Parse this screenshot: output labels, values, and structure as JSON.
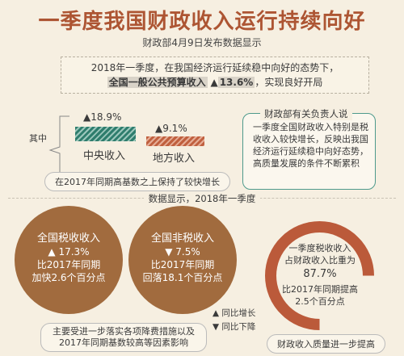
{
  "header": {
    "title": "一季度我国财政收入运行持续向好",
    "subtitle": "财政部4月9日发布数据显示"
  },
  "intro": {
    "line1": "2018年一季度，在我国经济运行延续稳中向好的态势下，",
    "line2_highlight": "全国一般公共预算收入",
    "line2_arrow": "▲",
    "line2_value": "13.6%",
    "line2_tail": "，实现良好开局"
  },
  "revenue": {
    "qizhong": "其中",
    "central": {
      "pct": "▲18.9%",
      "label": "中央收入",
      "growth": 18.9
    },
    "local": {
      "pct": "▲9.1%",
      "label": "地方收入",
      "growth": 9.1
    },
    "note": "在2017年同期高基数之上保持了较快增长"
  },
  "quote": {
    "title": "财政部有关负责人说",
    "body": "一季度全国财政收入特别是税收收入较快增长，反映出我国经济运行延续稳中向好态势，高质量发展的条件不断累积"
  },
  "section": {
    "label": "数据显示，2018年一季度"
  },
  "tax": {
    "line1": "全国税收收入",
    "line2": "▲ 17.3%",
    "line3": "比2017年同期",
    "line4": "加快2.6个百分点"
  },
  "nontax": {
    "line1": "全国非税收入",
    "line2": "▼ 7.5%",
    "line3": "比2017年同期",
    "line4": "回落18.1个百分点"
  },
  "share": {
    "line1": "一季度税收收入",
    "line2": "占财政收入比重为",
    "value": "87.7%",
    "line3": "比2017年同期提高",
    "line4": "2.5个百分点",
    "fraction": 0.877
  },
  "legend": {
    "up": "▲ 同比增长",
    "down": "▼ 同比下降"
  },
  "notes": {
    "reason_line1": "主要受进一步落实各项降费措施以及",
    "reason_line2": "2017年同期基数较高等因素影响",
    "quality": "财政收入质量进一步提高"
  },
  "colors": {
    "title": "#ad5533",
    "teal": "#2f7d6d",
    "rust": "#c0603f",
    "brown": "#a16b3e"
  }
}
